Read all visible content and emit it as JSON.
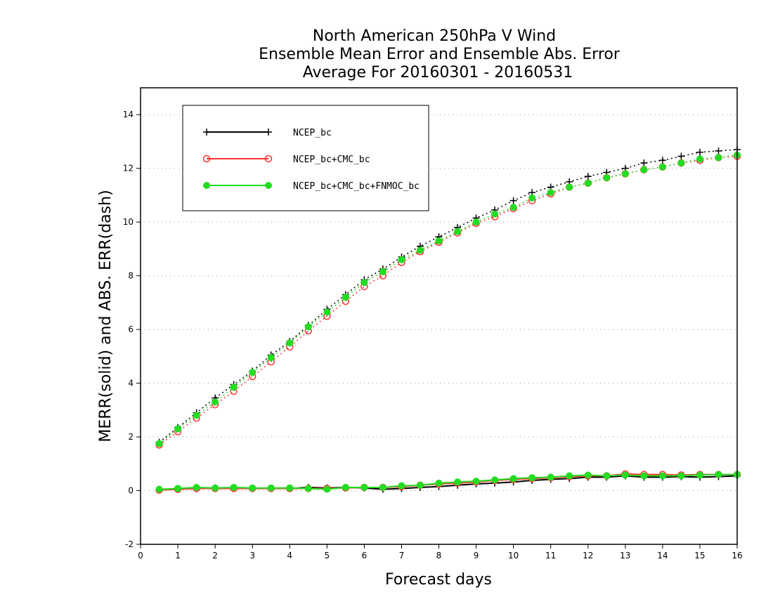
{
  "chart_data": {
    "type": "line",
    "title_lines": [
      "North American 250hPa V Wind",
      "Ensemble Mean Error and Ensemble Abs. Error",
      "Average For 20160301 - 20160531"
    ],
    "xlabel": "Forecast days",
    "ylabel": "MERR(solid) and ABS. ERR(dash)",
    "xlim": [
      0,
      16
    ],
    "ylim": [
      -2,
      15
    ],
    "x_ticks": [
      0,
      1,
      2,
      3,
      4,
      5,
      6,
      7,
      8,
      9,
      10,
      11,
      12,
      13,
      14,
      15,
      16
    ],
    "y_ticks": [
      -2,
      0,
      2,
      4,
      6,
      8,
      10,
      12,
      14
    ],
    "grid": "horizontal dotted",
    "legend_position": "top-left",
    "x": [
      0.5,
      1,
      1.5,
      2,
      2.5,
      3,
      3.5,
      4,
      4.5,
      5,
      5.5,
      6,
      6.5,
      7,
      7.5,
      8,
      8.5,
      9,
      9.5,
      10,
      10.5,
      11,
      11.5,
      12,
      12.5,
      13,
      13.5,
      14,
      14.5,
      15,
      15.5,
      16
    ],
    "series": [
      {
        "name": "NCEP_bc",
        "color": "#000000",
        "marker": "plus",
        "abs_err": [
          1.8,
          2.35,
          2.9,
          3.45,
          3.95,
          4.45,
          5.05,
          5.55,
          6.15,
          6.75,
          7.3,
          7.85,
          8.25,
          8.7,
          9.1,
          9.45,
          9.8,
          10.15,
          10.45,
          10.8,
          11.1,
          11.3,
          11.5,
          11.7,
          11.85,
          12.0,
          12.2,
          12.3,
          12.45,
          12.6,
          12.65,
          12.7
        ],
        "mean_err": [
          0.05,
          0.05,
          0.1,
          0.1,
          0.1,
          0.08,
          0.08,
          0.08,
          0.12,
          0.1,
          0.12,
          0.1,
          0.05,
          0.08,
          0.12,
          0.15,
          0.2,
          0.25,
          0.28,
          0.32,
          0.38,
          0.42,
          0.45,
          0.5,
          0.5,
          0.55,
          0.5,
          0.5,
          0.52,
          0.5,
          0.52,
          0.55
        ]
      },
      {
        "name": "NCEP_bc+CMC_bc",
        "color": "#ff3333",
        "marker": "circle-open",
        "abs_err": [
          1.7,
          2.2,
          2.7,
          3.2,
          3.7,
          4.25,
          4.8,
          5.35,
          5.95,
          6.5,
          7.05,
          7.6,
          8.0,
          8.5,
          8.9,
          9.25,
          9.6,
          9.95,
          10.2,
          10.5,
          10.8,
          11.05,
          11.3,
          11.45,
          11.65,
          11.8,
          11.95,
          12.05,
          12.2,
          12.3,
          12.4,
          12.45
        ],
        "mean_err": [
          0.02,
          0.05,
          0.08,
          0.08,
          0.08,
          0.08,
          0.08,
          0.08,
          0.08,
          0.08,
          0.1,
          0.12,
          0.12,
          0.15,
          0.2,
          0.25,
          0.28,
          0.32,
          0.38,
          0.42,
          0.45,
          0.48,
          0.52,
          0.55,
          0.55,
          0.62,
          0.6,
          0.6,
          0.58,
          0.6,
          0.6,
          0.6
        ]
      },
      {
        "name": "NCEP_bc+CMC_bc+FNMOC_bc",
        "color": "#22dd22",
        "marker": "circle-filled",
        "abs_err": [
          1.75,
          2.3,
          2.8,
          3.3,
          3.85,
          4.4,
          4.95,
          5.5,
          6.1,
          6.65,
          7.2,
          7.75,
          8.15,
          8.6,
          8.95,
          9.3,
          9.65,
          10.0,
          10.3,
          10.55,
          10.9,
          11.1,
          11.3,
          11.45,
          11.65,
          11.8,
          11.95,
          12.05,
          12.2,
          12.35,
          12.4,
          12.5
        ],
        "mean_err": [
          0.05,
          0.08,
          0.12,
          0.1,
          0.12,
          0.1,
          0.1,
          0.1,
          0.08,
          0.05,
          0.12,
          0.12,
          0.12,
          0.18,
          0.2,
          0.28,
          0.32,
          0.35,
          0.4,
          0.45,
          0.48,
          0.5,
          0.55,
          0.58,
          0.55,
          0.58,
          0.55,
          0.55,
          0.55,
          0.58,
          0.6,
          0.6
        ]
      }
    ]
  }
}
